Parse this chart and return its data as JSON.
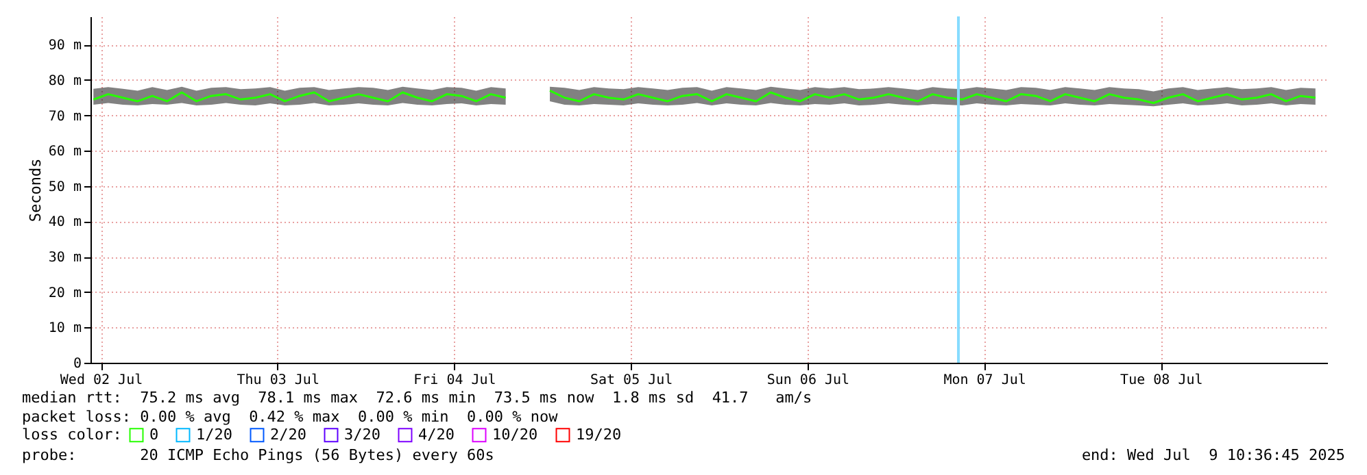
{
  "chart_data": {
    "type": "line",
    "ylabel": "Seconds",
    "x": [
      "2025-07-02T11:00",
      "2025-07-02T13:00",
      "2025-07-02T15:00",
      "2025-07-02T17:00",
      "2025-07-02T19:00",
      "2025-07-02T21:00",
      "2025-07-02T23:00",
      "2025-07-03T01:00",
      "2025-07-03T03:00",
      "2025-07-03T05:00",
      "2025-07-03T07:00",
      "2025-07-03T09:00",
      "2025-07-03T11:00",
      "2025-07-03T13:00",
      "2025-07-03T15:00",
      "2025-07-03T17:00",
      "2025-07-03T19:00",
      "2025-07-03T21:00",
      "2025-07-03T23:00",
      "2025-07-04T01:00",
      "2025-07-04T03:00",
      "2025-07-04T05:00",
      "2025-07-04T07:00",
      "2025-07-04T09:00",
      "2025-07-04T11:00",
      "2025-07-04T13:00",
      "2025-07-04T15:00",
      "2025-07-04T17:00",
      "2025-07-04T19:00",
      "2025-07-04T21:00",
      "2025-07-04T23:00",
      "2025-07-05T01:00",
      "2025-07-05T03:00",
      "2025-07-05T05:00",
      "2025-07-05T07:00",
      "2025-07-05T09:00",
      "2025-07-05T11:00",
      "2025-07-05T13:00",
      "2025-07-05T15:00",
      "2025-07-05T17:00",
      "2025-07-05T19:00",
      "2025-07-05T21:00",
      "2025-07-05T23:00",
      "2025-07-06T01:00",
      "2025-07-06T03:00",
      "2025-07-06T05:00",
      "2025-07-06T07:00",
      "2025-07-06T09:00",
      "2025-07-06T11:00",
      "2025-07-06T13:00",
      "2025-07-06T15:00",
      "2025-07-06T17:00",
      "2025-07-06T19:00",
      "2025-07-06T21:00",
      "2025-07-06T23:00",
      "2025-07-07T01:00",
      "2025-07-07T03:00",
      "2025-07-07T05:00",
      "2025-07-07T07:00",
      "2025-07-07T09:00",
      "2025-07-07T11:00",
      "2025-07-07T13:00",
      "2025-07-07T15:00",
      "2025-07-07T17:00",
      "2025-07-07T19:00",
      "2025-07-07T21:00",
      "2025-07-07T23:00",
      "2025-07-08T01:00",
      "2025-07-08T03:00",
      "2025-07-08T05:00",
      "2025-07-08T07:00",
      "2025-07-08T09:00",
      "2025-07-08T11:00",
      "2025-07-08T13:00",
      "2025-07-08T15:00",
      "2025-07-08T17:00",
      "2025-07-08T19:00",
      "2025-07-08T21:00",
      "2025-07-08T23:00",
      "2025-07-09T01:00",
      "2025-07-09T03:00",
      "2025-07-09T05:00",
      "2025-07-09T07:00",
      "2025-07-09T09:00"
    ],
    "series": [
      {
        "name": "0",
        "color": "#26ff00",
        "values": [
          74.5,
          76,
          75,
          74,
          75.5,
          74,
          76.5,
          74,
          75.5,
          76,
          74.5,
          75,
          76,
          74,
          75.5,
          76.5,
          74,
          75,
          76,
          75,
          74,
          76.5,
          75,
          74,
          76,
          75.5,
          74,
          76,
          75,
          null,
          null,
          77,
          75,
          74,
          76,
          75,
          74.5,
          76,
          75,
          74,
          75.5,
          76,
          74,
          76,
          75,
          74,
          76.5,
          75,
          74,
          76,
          75,
          76,
          74.5,
          75,
          76,
          75,
          74,
          76,
          75,
          74.5,
          76,
          75,
          74,
          76,
          75.5,
          74,
          76,
          75,
          74,
          76,
          75,
          74.5,
          73.5,
          75,
          76,
          74,
          75,
          76,
          74.5,
          75,
          76,
          74,
          75.5,
          75
        ],
        "lower": [
          73,
          73.5,
          73,
          72.8,
          73.2,
          73,
          73.5,
          72.8,
          73,
          73.5,
          73,
          72.8,
          73.4,
          72.8,
          73,
          73.5,
          72.8,
          73,
          73.4,
          73,
          72.8,
          73.5,
          73,
          72.8,
          73.2,
          73.4,
          72.8,
          73.2,
          73,
          null,
          null,
          74,
          73,
          72.8,
          73.2,
          73,
          72.8,
          73.4,
          73,
          72.8,
          73,
          73.5,
          72.8,
          73.4,
          73,
          72.8,
          73.5,
          73,
          72.8,
          73.2,
          73,
          73.4,
          72.8,
          73,
          73.4,
          73,
          72.8,
          73.2,
          73,
          72.8,
          73.4,
          73,
          72.8,
          73.2,
          73,
          72.8,
          73.4,
          73,
          72.8,
          73.2,
          73,
          72.8,
          72.6,
          73,
          73.4,
          72.8,
          73,
          73.4,
          72.8,
          73,
          73.4,
          72.8,
          73.2,
          73
        ],
        "upper": [
          77.5,
          78,
          77.5,
          77,
          78,
          77.2,
          78.1,
          77,
          77.8,
          78,
          77.4,
          77.6,
          78,
          77,
          77.8,
          78,
          77.2,
          77.6,
          78,
          77.8,
          77.2,
          78.1,
          77.6,
          77.2,
          78,
          77.8,
          77,
          78,
          77.6,
          null,
          null,
          78.1,
          77.8,
          77.2,
          78,
          77.6,
          77.4,
          78,
          77.6,
          77.2,
          77.8,
          78,
          77,
          78,
          77.6,
          77.2,
          78.1,
          77.6,
          77.2,
          78,
          77.6,
          78,
          77.4,
          77.6,
          78,
          77.6,
          77.2,
          78,
          77.6,
          77.4,
          78,
          77.6,
          77.2,
          78,
          77.8,
          77.2,
          78,
          77.6,
          77.2,
          78,
          77.6,
          77.4,
          76.8,
          77.6,
          78,
          77.2,
          77.6,
          78,
          77.4,
          77.6,
          78,
          77.2,
          77.8,
          77.6
        ]
      },
      {
        "name": "1/20",
        "color": "#00b8ff",
        "values": [
          null,
          null,
          null,
          null,
          null,
          null,
          null,
          null,
          null,
          null,
          null,
          null,
          null,
          null,
          null,
          null,
          null,
          null,
          null,
          null,
          null,
          null,
          null,
          null,
          null,
          null,
          null,
          null,
          null,
          null,
          null,
          null,
          null,
          null,
          null,
          null,
          null,
          null,
          null,
          null,
          null,
          null,
          null,
          null,
          null,
          null,
          null,
          null,
          null,
          null,
          null,
          null,
          null,
          null,
          null,
          null,
          null,
          null,
          null,
          null,
          null,
          null,
          null,
          null,
          null,
          null,
          null,
          null,
          null,
          null,
          null,
          null,
          null,
          null,
          null,
          null,
          null,
          null,
          null,
          null,
          null,
          null,
          null,
          null
        ]
      },
      {
        "name": "2/20",
        "color": "#0059ff",
        "values": [
          null,
          null,
          null,
          null,
          null,
          null,
          null,
          null,
          null,
          null,
          null,
          null,
          null,
          null,
          null,
          null,
          null,
          null,
          null,
          null,
          null,
          null,
          null,
          null,
          null,
          null,
          null,
          null,
          null,
          null,
          null,
          null,
          null,
          null,
          null,
          null,
          null,
          null,
          null,
          null,
          null,
          null,
          null,
          null,
          null,
          null,
          null,
          null,
          null,
          null,
          null,
          null,
          null,
          null,
          null,
          null,
          null,
          null,
          null,
          null,
          null,
          null,
          null,
          null,
          null,
          null,
          null,
          null,
          null,
          null,
          null,
          null,
          null,
          null,
          null,
          null,
          null,
          null,
          null,
          null,
          null,
          null,
          null,
          null
        ]
      },
      {
        "name": "3/20",
        "color": "#5e00ff",
        "values": [
          null,
          null,
          null,
          null,
          null,
          null,
          null,
          null,
          null,
          null,
          null,
          null,
          null,
          null,
          null,
          null,
          null,
          null,
          null,
          null,
          null,
          null,
          null,
          null,
          null,
          null,
          null,
          null,
          null,
          null,
          null,
          null,
          null,
          null,
          null,
          null,
          null,
          null,
          null,
          null,
          null,
          null,
          null,
          null,
          null,
          null,
          null,
          null,
          null,
          null,
          null,
          null,
          null,
          null,
          null,
          null,
          null,
          null,
          null,
          null,
          null,
          null,
          null,
          null,
          null,
          null,
          null,
          null,
          null,
          null,
          null,
          null,
          null,
          null,
          null,
          null,
          null,
          null,
          null,
          null,
          null,
          null,
          null,
          null
        ]
      },
      {
        "name": "4/20",
        "color": "#7e00ff",
        "values": [
          null,
          null,
          null,
          null,
          null,
          null,
          null,
          null,
          null,
          null,
          null,
          null,
          null,
          null,
          null,
          null,
          null,
          null,
          null,
          null,
          null,
          null,
          null,
          null,
          null,
          null,
          null,
          null,
          null,
          null,
          null,
          null,
          null,
          null,
          null,
          null,
          null,
          null,
          null,
          null,
          null,
          null,
          null,
          null,
          null,
          null,
          null,
          null,
          null,
          null,
          null,
          null,
          null,
          null,
          null,
          null,
          null,
          null,
          null,
          null,
          null,
          null,
          null,
          null,
          null,
          null,
          null,
          null,
          null,
          null,
          null,
          null,
          null,
          null,
          null,
          null,
          null,
          null,
          null,
          null,
          null,
          null,
          null,
          null
        ]
      },
      {
        "name": "10/20",
        "color": "#dd00ff",
        "values": [
          null,
          null,
          null,
          null,
          null,
          null,
          null,
          null,
          null,
          null,
          null,
          null,
          null,
          null,
          null,
          null,
          null,
          null,
          null,
          null,
          null,
          null,
          null,
          null,
          null,
          null,
          null,
          null,
          null,
          null,
          null,
          null,
          null,
          null,
          null,
          null,
          null,
          null,
          null,
          null,
          null,
          null,
          null,
          null,
          null,
          null,
          null,
          null,
          null,
          null,
          null,
          null,
          null,
          null,
          null,
          null,
          null,
          null,
          null,
          null,
          null,
          null,
          null,
          null,
          null,
          null,
          null,
          null,
          null,
          null,
          null,
          null,
          null,
          null,
          null,
          null,
          null,
          null,
          null,
          null,
          null,
          null,
          null,
          null
        ]
      },
      {
        "name": "19/20",
        "color": "#ff0000",
        "values": [
          null,
          null,
          null,
          null,
          null,
          null,
          null,
          null,
          null,
          null,
          null,
          null,
          null,
          null,
          null,
          null,
          null,
          null,
          null,
          null,
          null,
          null,
          null,
          null,
          null,
          null,
          null,
          null,
          null,
          null,
          null,
          null,
          null,
          null,
          null,
          null,
          null,
          null,
          null,
          null,
          null,
          null,
          null,
          null,
          null,
          null,
          null,
          null,
          null,
          null,
          null,
          null,
          null,
          null,
          null,
          null,
          null,
          null,
          null,
          null,
          null,
          null,
          null,
          null,
          null,
          null,
          null,
          null,
          null,
          null,
          null,
          null,
          null,
          null,
          null,
          null,
          null,
          null,
          null,
          null,
          null,
          null,
          null,
          null
        ]
      }
    ],
    "legend": "bottom left",
    "legend_title": "loss color:",
    "xlim": [
      "2025-07-02T10:36",
      "2025-07-09T10:36"
    ],
    "xticks": [
      {
        "value": "2025-07-02T12:00",
        "label": "Wed 02 Jul"
      },
      {
        "value": "2025-07-03T12:00",
        "label": "Thu 03 Jul"
      },
      {
        "value": "2025-07-04T12:00",
        "label": "Fri 04 Jul"
      },
      {
        "value": "2025-07-05T12:00",
        "label": "Sat 05 Jul"
      },
      {
        "value": "2025-07-06T12:00",
        "label": "Sun 06 Jul"
      },
      {
        "value": "2025-07-07T12:00",
        "label": "Mon 07 Jul"
      },
      {
        "value": "2025-07-08T12:00",
        "label": "Tue 08 Jul"
      }
    ],
    "ylim": [
      0,
      98
    ],
    "yticks": [
      0,
      {
        "value": 10,
        "label": "10 m"
      },
      {
        "value": 20,
        "label": "20 m"
      },
      {
        "value": 30,
        "label": "30 m"
      },
      {
        "value": 40,
        "label": "40 m"
      },
      {
        "value": 50,
        "label": "50 m"
      },
      {
        "value": 60,
        "label": "60 m"
      },
      {
        "value": 70,
        "label": "70 m"
      },
      {
        "value": 80,
        "label": "80 m"
      },
      {
        "value": 90,
        "label": "90 m"
      }
    ],
    "grid": true,
    "line_style": "solid",
    "ref_lines": [
      {
        "axis": "x",
        "value": "2025-07-07T08:30",
        "label": null,
        "color": "#87dcff"
      }
    ],
    "annotations": [
      "median rtt:  75.2 ms avg  78.1 ms max  72.6 ms min  73.5 ms now  1.8 ms sd  41.7   am/s",
      "packet loss: 0.00 % avg  0.42 % max  0.00 % min  0.00 % now",
      "probe:       20 ICMP Echo Pings (56 Bytes) every 60s",
      "end: Wed Jul  9 10:36:45 2025"
    ]
  }
}
